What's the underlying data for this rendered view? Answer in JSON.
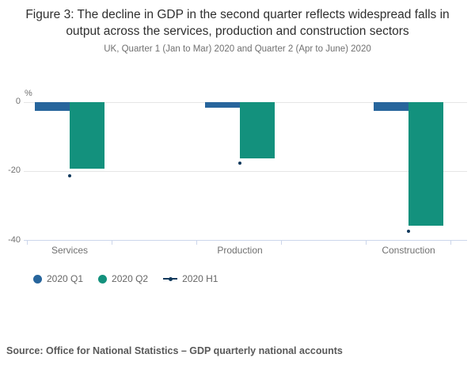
{
  "header": {
    "title": "Figure 3: The decline in GDP in the second quarter reflects widespread falls in output across the services, production and construction sectors",
    "subtitle": "UK, Quarter 1 (Jan to Mar) 2020 and Quarter 2 (Apr to June) 2020"
  },
  "chart_data": {
    "type": "bar",
    "categories": [
      "Services",
      "Production",
      "Construction"
    ],
    "series": [
      {
        "name": "2020 Q1",
        "type": "bar",
        "color": "#27659c",
        "values": [
          -2.6,
          -1.5,
          -2.5
        ]
      },
      {
        "name": "2020 Q2",
        "type": "bar",
        "color": "#13917d",
        "values": [
          -19.2,
          -16.3,
          -35.7
        ]
      },
      {
        "name": "2020 H1",
        "type": "point",
        "color": "#10395c",
        "values": [
          -21.3,
          -17.8,
          -37.4
        ]
      }
    ],
    "unit_label": "%",
    "y_ticks": [
      0,
      -20,
      -40
    ],
    "ylim": [
      -40,
      2
    ],
    "grid": true,
    "legend_position": "bottom"
  },
  "footer": {
    "source": "Source: Office for National Statistics – GDP quarterly national accounts"
  }
}
